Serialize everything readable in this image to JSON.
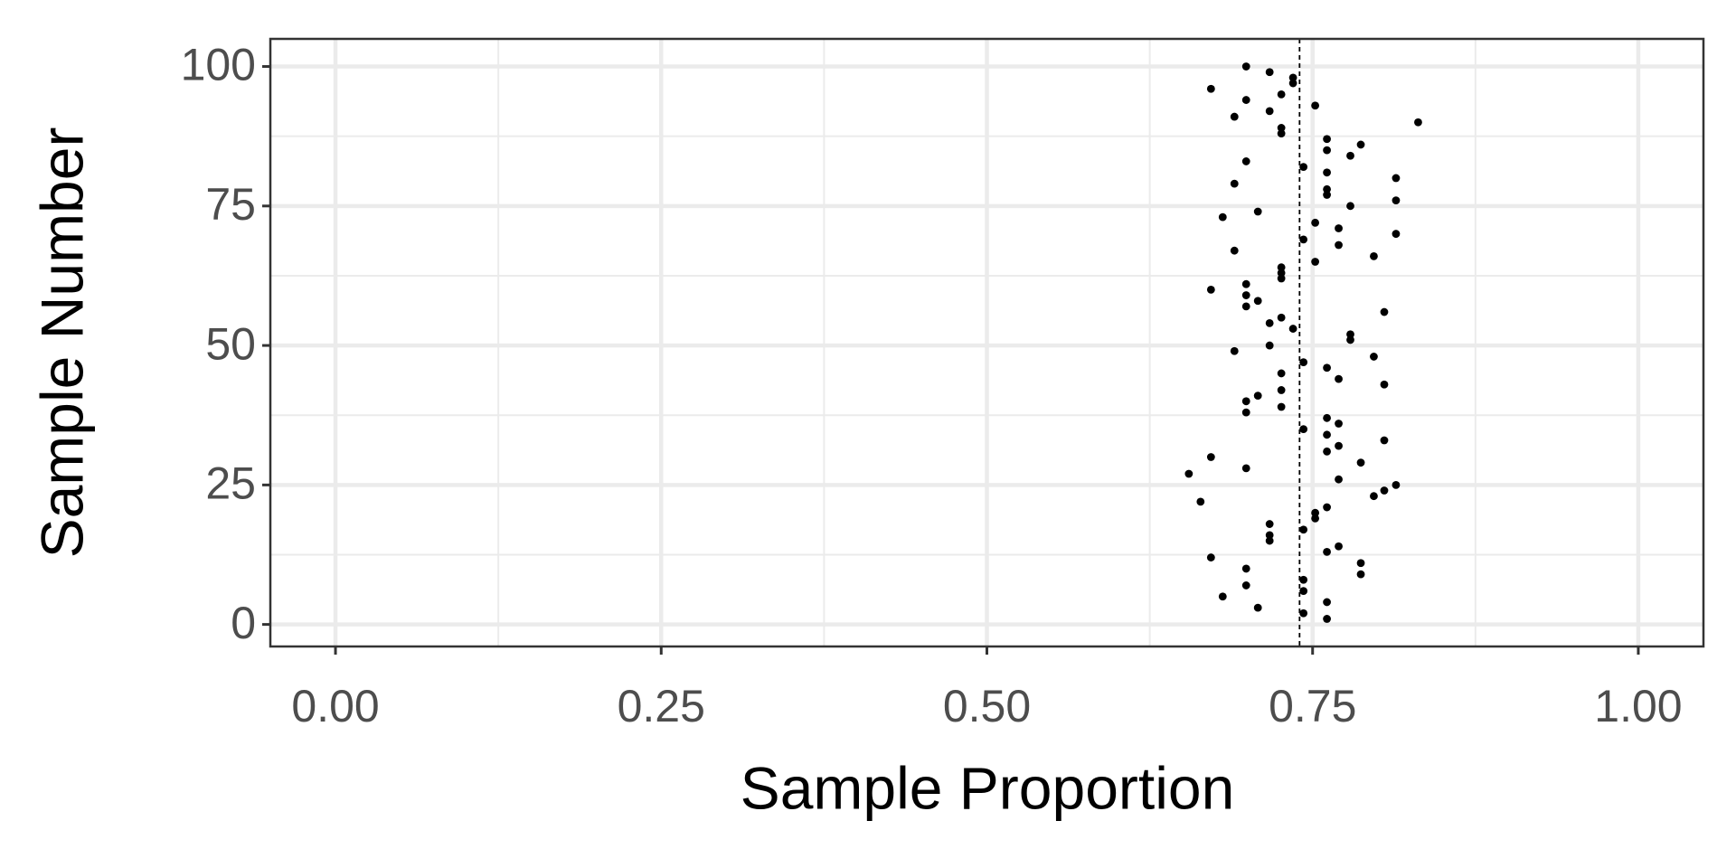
{
  "chart_data": {
    "type": "scatter",
    "x_label": "Sample Proportion",
    "y_label": "Sample Number",
    "x": [
      0.761,
      0.743,
      0.708,
      0.761,
      0.681,
      0.743,
      0.699,
      0.743,
      0.787,
      0.699,
      0.787,
      0.672,
      0.761,
      0.77,
      0.717,
      0.717,
      0.743,
      0.717,
      0.752,
      0.752,
      0.761,
      0.664,
      0.797,
      0.805,
      0.814,
      0.77,
      0.655,
      0.699,
      0.787,
      0.672,
      0.761,
      0.77,
      0.805,
      0.761,
      0.743,
      0.77,
      0.761,
      0.699,
      0.726,
      0.699,
      0.708,
      0.726,
      0.805,
      0.77,
      0.726,
      0.761,
      0.743,
      0.797,
      0.69,
      0.717,
      0.779,
      0.779,
      0.735,
      0.717,
      0.726,
      0.805,
      0.699,
      0.708,
      0.699,
      0.672,
      0.699,
      0.726,
      0.726,
      0.726,
      0.752,
      0.797,
      0.69,
      0.77,
      0.743,
      0.814,
      0.77,
      0.752,
      0.681,
      0.708,
      0.779,
      0.814,
      0.761,
      0.761,
      0.69,
      0.814,
      0.761,
      0.743,
      0.699,
      0.779,
      0.761,
      0.787,
      0.761,
      0.726,
      0.726,
      0.831,
      0.69,
      0.717,
      0.752,
      0.699,
      0.726,
      0.672,
      0.735,
      0.735,
      0.717,
      0.699
    ],
    "values": [
      1,
      2,
      3,
      4,
      5,
      6,
      7,
      8,
      9,
      10,
      11,
      12,
      13,
      14,
      15,
      16,
      17,
      18,
      19,
      20,
      21,
      22,
      23,
      24,
      25,
      26,
      27,
      28,
      29,
      30,
      31,
      32,
      33,
      34,
      35,
      36,
      37,
      38,
      39,
      40,
      41,
      42,
      43,
      44,
      45,
      46,
      47,
      48,
      49,
      50,
      51,
      52,
      53,
      54,
      55,
      56,
      57,
      58,
      59,
      60,
      61,
      62,
      63,
      64,
      65,
      66,
      67,
      68,
      69,
      70,
      71,
      72,
      73,
      74,
      75,
      76,
      77,
      78,
      79,
      80,
      81,
      82,
      83,
      84,
      85,
      86,
      87,
      88,
      89,
      90,
      91,
      92,
      93,
      94,
      95,
      96,
      97,
      98,
      99,
      100
    ],
    "color": "#000000",
    "reference_line": 0.74,
    "xlim": [
      -0.05,
      1.05
    ],
    "ylim": [
      -3.95,
      104.95
    ],
    "xticks": [
      {
        "value": 0,
        "label": "0.00"
      },
      {
        "value": 0.25,
        "label": "0.25"
      },
      {
        "value": 0.5,
        "label": "0.50"
      },
      {
        "value": 0.75,
        "label": "0.75"
      },
      {
        "value": 1,
        "label": "1.00"
      }
    ],
    "yticks": [
      0,
      25,
      50,
      75,
      100
    ],
    "minor_xticks": [
      0.125,
      0.375,
      0.625,
      0.875
    ],
    "minor_yticks": [
      12.5,
      37.5,
      62.5,
      87.5
    ],
    "grid": true
  }
}
